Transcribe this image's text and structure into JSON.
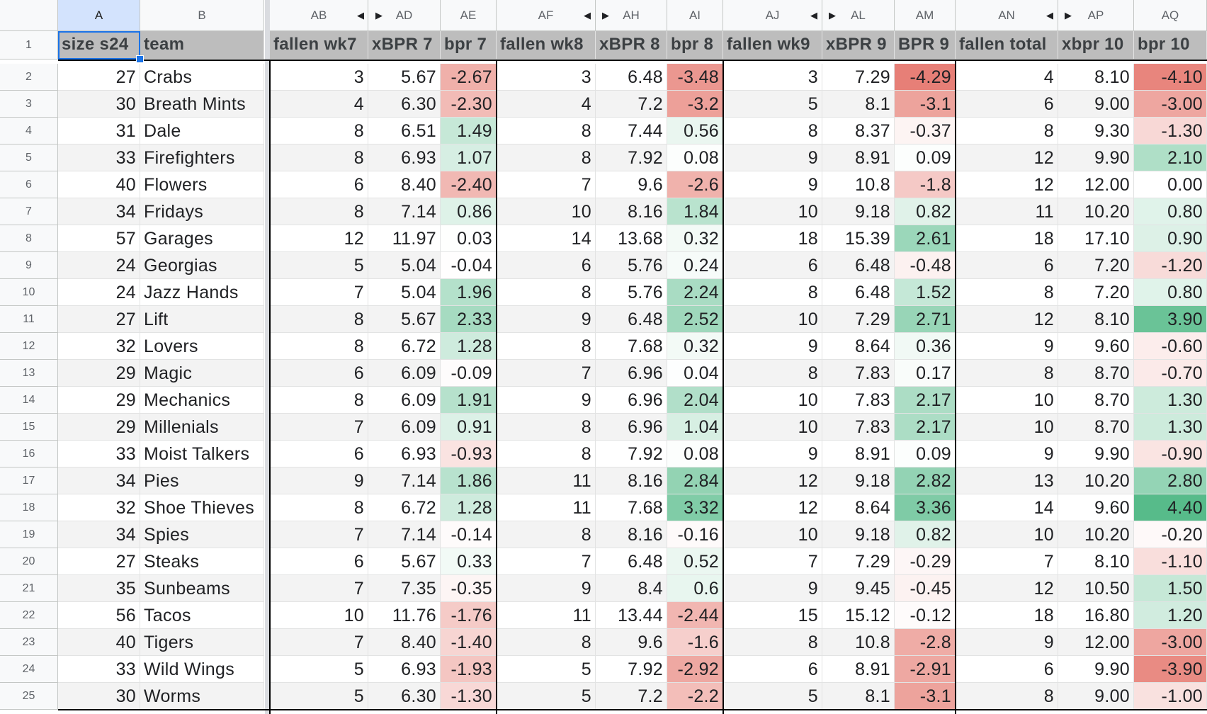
{
  "columns": [
    {
      "letter": "A",
      "header": "size s24"
    },
    {
      "letter": "B",
      "header": "team"
    },
    {
      "letter": "AB",
      "header": "fallen wk7"
    },
    {
      "letter": "AD",
      "header": "xBPR 7"
    },
    {
      "letter": "AE",
      "header": "bpr 7"
    },
    {
      "letter": "AF",
      "header": "fallen wk8"
    },
    {
      "letter": "AH",
      "header": "xBPR 8"
    },
    {
      "letter": "AI",
      "header": "bpr 8"
    },
    {
      "letter": "AJ",
      "header": "fallen wk9"
    },
    {
      "letter": "AL",
      "header": "xBPR 9"
    },
    {
      "letter": "AM",
      "header": "BPR 9"
    },
    {
      "letter": "AN",
      "header": "fallen total"
    },
    {
      "letter": "AP",
      "header": "xbpr 10"
    },
    {
      "letter": "AQ",
      "header": "bpr 10"
    }
  ],
  "header_row_number": "1",
  "rows": [
    {
      "n": "2",
      "cells": [
        "27",
        "Crabs",
        "3",
        "5.67",
        "-2.67",
        "3",
        "6.48",
        "-3.48",
        "3",
        "7.29",
        "-4.29",
        "4",
        "8.10",
        "-4.10"
      ]
    },
    {
      "n": "3",
      "cells": [
        "30",
        "Breath Mints",
        "4",
        "6.30",
        "-2.30",
        "4",
        "7.2",
        "-3.2",
        "5",
        "8.1",
        "-3.1",
        "6",
        "9.00",
        "-3.00"
      ]
    },
    {
      "n": "4",
      "cells": [
        "31",
        "Dale",
        "8",
        "6.51",
        "1.49",
        "8",
        "7.44",
        "0.56",
        "8",
        "8.37",
        "-0.37",
        "8",
        "9.30",
        "-1.30"
      ]
    },
    {
      "n": "5",
      "cells": [
        "33",
        "Firefighters",
        "8",
        "6.93",
        "1.07",
        "8",
        "7.92",
        "0.08",
        "9",
        "8.91",
        "0.09",
        "12",
        "9.90",
        "2.10"
      ]
    },
    {
      "n": "6",
      "cells": [
        "40",
        "Flowers",
        "6",
        "8.40",
        "-2.40",
        "7",
        "9.6",
        "-2.6",
        "9",
        "10.8",
        "-1.8",
        "12",
        "12.00",
        "0.00"
      ]
    },
    {
      "n": "7",
      "cells": [
        "34",
        "Fridays",
        "8",
        "7.14",
        "0.86",
        "10",
        "8.16",
        "1.84",
        "10",
        "9.18",
        "0.82",
        "11",
        "10.20",
        "0.80"
      ]
    },
    {
      "n": "8",
      "cells": [
        "57",
        "Garages",
        "12",
        "11.97",
        "0.03",
        "14",
        "13.68",
        "0.32",
        "18",
        "15.39",
        "2.61",
        "18",
        "17.10",
        "0.90"
      ]
    },
    {
      "n": "9",
      "cells": [
        "24",
        "Georgias",
        "5",
        "5.04",
        "-0.04",
        "6",
        "5.76",
        "0.24",
        "6",
        "6.48",
        "-0.48",
        "6",
        "7.20",
        "-1.20"
      ]
    },
    {
      "n": "10",
      "cells": [
        "24",
        "Jazz Hands",
        "7",
        "5.04",
        "1.96",
        "8",
        "5.76",
        "2.24",
        "8",
        "6.48",
        "1.52",
        "8",
        "7.20",
        "0.80"
      ]
    },
    {
      "n": "11",
      "cells": [
        "27",
        "Lift",
        "8",
        "5.67",
        "2.33",
        "9",
        "6.48",
        "2.52",
        "10",
        "7.29",
        "2.71",
        "12",
        "8.10",
        "3.90"
      ]
    },
    {
      "n": "12",
      "cells": [
        "32",
        "Lovers",
        "8",
        "6.72",
        "1.28",
        "8",
        "7.68",
        "0.32",
        "9",
        "8.64",
        "0.36",
        "9",
        "9.60",
        "-0.60"
      ]
    },
    {
      "n": "13",
      "cells": [
        "29",
        "Magic",
        "6",
        "6.09",
        "-0.09",
        "7",
        "6.96",
        "0.04",
        "8",
        "7.83",
        "0.17",
        "8",
        "8.70",
        "-0.70"
      ]
    },
    {
      "n": "14",
      "cells": [
        "29",
        "Mechanics",
        "8",
        "6.09",
        "1.91",
        "9",
        "6.96",
        "2.04",
        "10",
        "7.83",
        "2.17",
        "10",
        "8.70",
        "1.30"
      ]
    },
    {
      "n": "15",
      "cells": [
        "29",
        "Millenials",
        "7",
        "6.09",
        "0.91",
        "8",
        "6.96",
        "1.04",
        "10",
        "7.83",
        "2.17",
        "10",
        "8.70",
        "1.30"
      ]
    },
    {
      "n": "16",
      "cells": [
        "33",
        "Moist Talkers",
        "6",
        "6.93",
        "-0.93",
        "8",
        "7.92",
        "0.08",
        "9",
        "8.91",
        "0.09",
        "9",
        "9.90",
        "-0.90"
      ]
    },
    {
      "n": "17",
      "cells": [
        "34",
        "Pies",
        "9",
        "7.14",
        "1.86",
        "11",
        "8.16",
        "2.84",
        "12",
        "9.18",
        "2.82",
        "13",
        "10.20",
        "2.80"
      ]
    },
    {
      "n": "18",
      "cells": [
        "32",
        "Shoe Thieves",
        "8",
        "6.72",
        "1.28",
        "11",
        "7.68",
        "3.32",
        "12",
        "8.64",
        "3.36",
        "14",
        "9.60",
        "4.40"
      ]
    },
    {
      "n": "19",
      "cells": [
        "34",
        "Spies",
        "7",
        "7.14",
        "-0.14",
        "8",
        "8.16",
        "-0.16",
        "10",
        "9.18",
        "0.82",
        "10",
        "10.20",
        "-0.20"
      ]
    },
    {
      "n": "20",
      "cells": [
        "27",
        "Steaks",
        "6",
        "5.67",
        "0.33",
        "7",
        "6.48",
        "0.52",
        "7",
        "7.29",
        "-0.29",
        "7",
        "8.10",
        "-1.10"
      ]
    },
    {
      "n": "21",
      "cells": [
        "35",
        "Sunbeams",
        "7",
        "7.35",
        "-0.35",
        "9",
        "8.4",
        "0.6",
        "9",
        "9.45",
        "-0.45",
        "12",
        "10.50",
        "1.50"
      ]
    },
    {
      "n": "22",
      "cells": [
        "56",
        "Tacos",
        "10",
        "11.76",
        "-1.76",
        "11",
        "13.44",
        "-2.44",
        "15",
        "15.12",
        "-0.12",
        "18",
        "16.80",
        "1.20"
      ]
    },
    {
      "n": "23",
      "cells": [
        "40",
        "Tigers",
        "7",
        "8.40",
        "-1.40",
        "8",
        "9.6",
        "-1.6",
        "8",
        "10.8",
        "-2.8",
        "9",
        "12.00",
        "-3.00"
      ]
    },
    {
      "n": "24",
      "cells": [
        "33",
        "Wild Wings",
        "5",
        "6.93",
        "-1.93",
        "5",
        "7.92",
        "-2.92",
        "6",
        "8.91",
        "-2.91",
        "6",
        "9.90",
        "-3.90"
      ]
    },
    {
      "n": "25",
      "cells": [
        "30",
        "Worms",
        "5",
        "6.30",
        "-1.30",
        "5",
        "7.2",
        "-2.2",
        "5",
        "8.1",
        "-3.1",
        "8",
        "9.00",
        "-1.00"
      ]
    }
  ],
  "selected_cell": "A1",
  "colors": {
    "neg_max": "#e67c73",
    "pos_max": "#57bb8a",
    "header_fill": "#bdbdbd",
    "band_fill": "#f3f3f3",
    "selection": "#1a73e8"
  }
}
